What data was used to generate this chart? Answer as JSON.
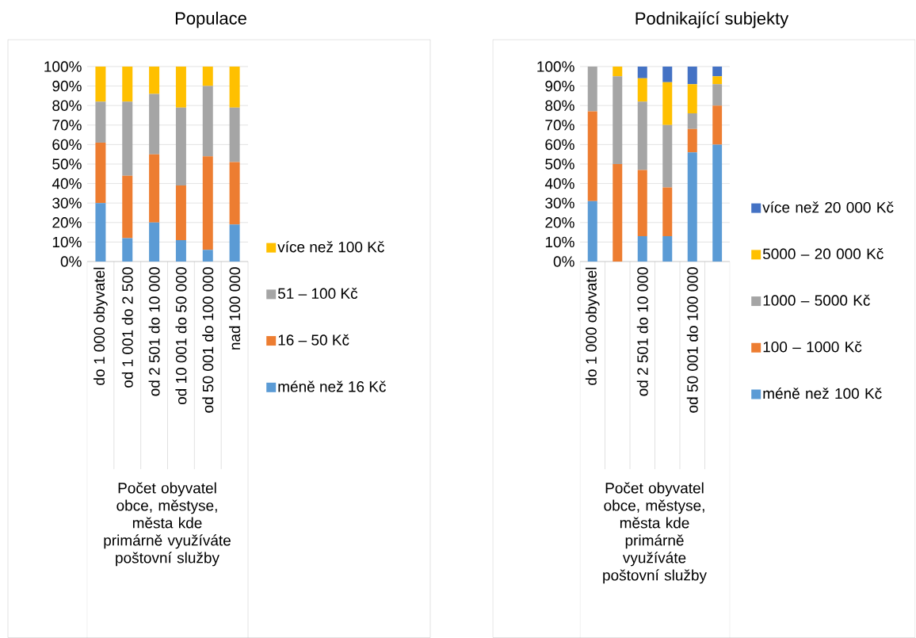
{
  "chart_data": [
    {
      "type": "bar",
      "title": "Populace",
      "xlabel": "Počet obyvatel obce, městyse, města kde primárně využíváte poštovní služby",
      "categories": [
        "do 1 000 obyvatel",
        "od 1 001 do 2 500",
        "od 2 501 do 10 000",
        "od 10 001 do 50 000",
        "od 50 001 do 100 000",
        "nad 100 000"
      ],
      "series": [
        {
          "name": "méně než 16 Kč",
          "color": "#5b9bd5",
          "values": [
            30,
            12,
            20,
            11,
            6,
            19
          ]
        },
        {
          "name": "16 – 50 Kč",
          "color": "#ed7d31",
          "values": [
            31,
            32,
            35,
            28,
            48,
            32
          ]
        },
        {
          "name": "51 – 100 Kč",
          "color": "#a5a5a5",
          "values": [
            21,
            38,
            31,
            40,
            36,
            28
          ]
        },
        {
          "name": "více než 100 Kč",
          "color": "#ffc000",
          "values": [
            18,
            18,
            14,
            21,
            10,
            21
          ]
        }
      ],
      "stacked": true,
      "ylim": [
        0,
        100
      ],
      "yticks": [
        {
          "value": 0,
          "label": "0%"
        },
        {
          "value": 10,
          "label": "10%"
        },
        {
          "value": 20,
          "label": "20%"
        },
        {
          "value": 30,
          "label": "30%"
        },
        {
          "value": 40,
          "label": "40%"
        },
        {
          "value": 50,
          "label": "50%"
        },
        {
          "value": 60,
          "label": "60%"
        },
        {
          "value": 70,
          "label": "70%"
        },
        {
          "value": 80,
          "label": "80%"
        },
        {
          "value": 90,
          "label": "90%"
        },
        {
          "value": 100,
          "label": "100%"
        }
      ],
      "grid": "y",
      "legend": "right"
    },
    {
      "type": "bar",
      "title": "Podnikající subjekty",
      "xlabel": "Počet obyvatel obce, městyse, města kde primárně využíváte poštovní služby",
      "categories": [
        "do 1 000 obyvatel",
        null,
        "od 2 501 do 10 000",
        null,
        "od 50 001 do 100 000",
        null
      ],
      "series": [
        {
          "name": "méně než 100 Kč",
          "color": "#5b9bd5",
          "values": [
            31,
            0,
            13,
            13,
            56,
            60
          ]
        },
        {
          "name": "100 – 1000 Kč",
          "color": "#ed7d31",
          "values": [
            46,
            50,
            34,
            25,
            12,
            20
          ]
        },
        {
          "name": "1000 – 5000 Kč",
          "color": "#a5a5a5",
          "values": [
            23,
            45,
            35,
            32,
            8,
            11
          ]
        },
        {
          "name": "5000 – 20 000 Kč",
          "color": "#ffc000",
          "values": [
            0,
            5,
            12,
            22,
            15,
            4
          ]
        },
        {
          "name": "více než 20 000 Kč",
          "color": "#4472c4",
          "values": [
            0,
            0,
            6,
            8,
            9,
            5
          ]
        }
      ],
      "stacked": true,
      "ylim": [
        0,
        100
      ],
      "yticks": [
        {
          "value": 0,
          "label": "0%"
        },
        {
          "value": 10,
          "label": "10%"
        },
        {
          "value": 20,
          "label": "20%"
        },
        {
          "value": 30,
          "label": "30%"
        },
        {
          "value": 40,
          "label": "40%"
        },
        {
          "value": 50,
          "label": "50%"
        },
        {
          "value": 60,
          "label": "60%"
        },
        {
          "value": 70,
          "label": "70%"
        },
        {
          "value": 80,
          "label": "80%"
        },
        {
          "value": 90,
          "label": "90%"
        },
        {
          "value": 100,
          "label": "100%"
        }
      ],
      "grid": "y",
      "legend": "right"
    }
  ]
}
